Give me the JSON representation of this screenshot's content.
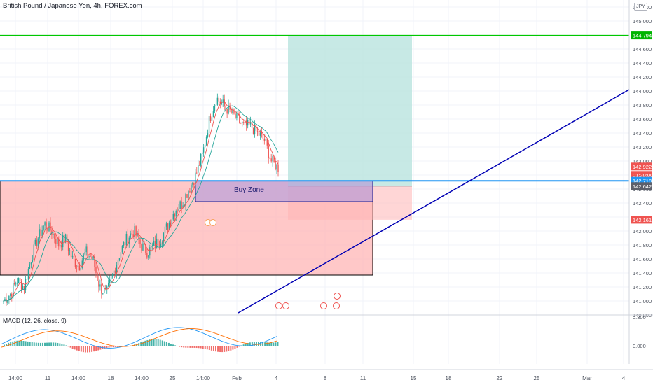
{
  "header": {
    "symbol_title": "British Pound / Japanese Yen, 4h, FOREX.com",
    "currency": "JPY"
  },
  "price_axis": {
    "ticks": [
      "145.200",
      "145.000",
      "144.800",
      "144.600",
      "144.400",
      "144.200",
      "144.000",
      "143.800",
      "143.600",
      "143.400",
      "143.200",
      "143.000",
      "142.800",
      "142.600",
      "142.400",
      "142.200",
      "142.000",
      "141.800",
      "141.600",
      "141.400",
      "141.200",
      "141.000",
      "140.800"
    ],
    "tags": {
      "target": "144.794",
      "last_price": "142.922",
      "countdown": "01:20:00",
      "blue_line": "142.718",
      "entry": "142.642",
      "stop": "142.161"
    }
  },
  "time_axis": {
    "labels": [
      "14:00",
      "11",
      "14:00",
      "18",
      "14:00",
      "25",
      "14:00",
      "Feb",
      "4",
      "8",
      "11",
      "15",
      "18",
      "22",
      "25",
      "Mar",
      "4"
    ]
  },
  "annotations": {
    "buy_zone": "Buy Zone"
  },
  "macd": {
    "label": "MACD (12, 26, close, 9)",
    "zero_label": "0.000",
    "top_label": "0.300"
  },
  "colors": {
    "bull": "#26a69a",
    "bear": "#ef5350",
    "target_line": "#00c800",
    "trend_line": "#0000b4",
    "blue_level": "#2196f3",
    "zone_fill": "#ffb5b5",
    "tp_fill": "#b9e3df",
    "buy_zone_fill": "#b39ddb"
  },
  "chart_data": {
    "type": "candlestick",
    "price_range": [
      140.8,
      145.2
    ],
    "levels": {
      "target": 144.794,
      "blue_line": 142.718,
      "entry": 142.642,
      "stop": 142.161,
      "zone_top": 142.72,
      "zone_bottom": 141.37,
      "buy_zone_top": 142.72,
      "buy_zone_bottom": 142.42
    },
    "price_path": [
      141.0,
      141.1,
      141.3,
      141.2,
      141.6,
      141.9,
      142.1,
      142.0,
      141.8,
      141.9,
      141.6,
      141.5,
      141.7,
      141.6,
      141.2,
      141.1,
      141.4,
      141.7,
      141.9,
      142.0,
      141.8,
      141.7,
      141.8,
      141.9,
      142.1,
      142.3,
      142.4,
      142.6,
      142.8,
      143.1,
      143.6,
      143.9,
      143.8,
      143.7,
      143.6,
      143.5,
      143.5,
      143.4,
      143.3,
      143.0,
      142.9
    ]
  }
}
